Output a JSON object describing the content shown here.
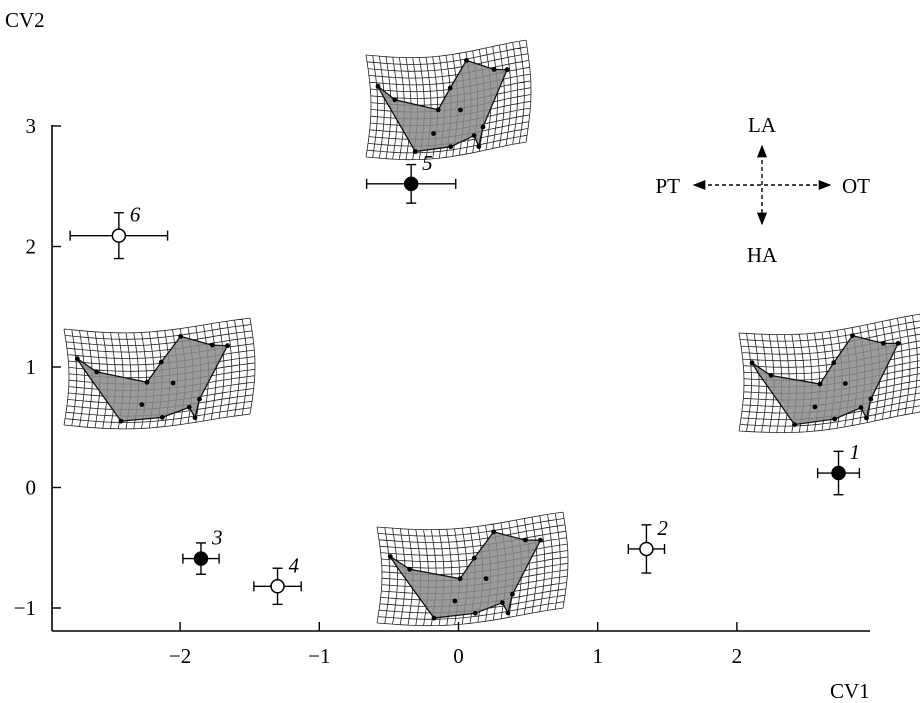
{
  "chart_data": {
    "type": "scatter",
    "xlabel": "CV1",
    "ylabel": "CV2",
    "xlim": [
      -2.95,
      2.95
    ],
    "ylim": [
      -1.2,
      3.1
    ],
    "xticks": [
      -2,
      -1,
      0,
      1,
      2
    ],
    "yticks": [
      -1,
      0,
      1,
      2,
      3
    ],
    "xtick_labels": [
      "−2",
      "−1",
      "0",
      "1",
      "2"
    ],
    "ytick_labels": [
      "−1",
      "0",
      "1",
      "2",
      "3"
    ],
    "points": [
      {
        "label": "1",
        "x": 2.73,
        "y": 0.12,
        "x_err": 0.15,
        "y_err": 0.18,
        "filled": true
      },
      {
        "label": "2",
        "x": 1.35,
        "y": -0.51,
        "x_err": 0.13,
        "y_err": 0.2,
        "filled": false
      },
      {
        "label": "3",
        "x": -1.85,
        "y": -0.59,
        "x_err": 0.13,
        "y_err": 0.13,
        "filled": true
      },
      {
        "label": "4",
        "x": -1.3,
        "y": -0.82,
        "x_err": 0.17,
        "y_err": 0.15,
        "filled": false
      },
      {
        "label": "5",
        "x": -0.34,
        "y": 2.52,
        "x_err": 0.32,
        "y_err": 0.16,
        "filled": true
      },
      {
        "label": "6",
        "x": -2.44,
        "y": 2.09,
        "x_err": 0.35,
        "y_err": 0.19,
        "filled": false
      }
    ],
    "compass": {
      "up": "LA",
      "down": "HA",
      "left": "PT",
      "right": "OT"
    }
  }
}
